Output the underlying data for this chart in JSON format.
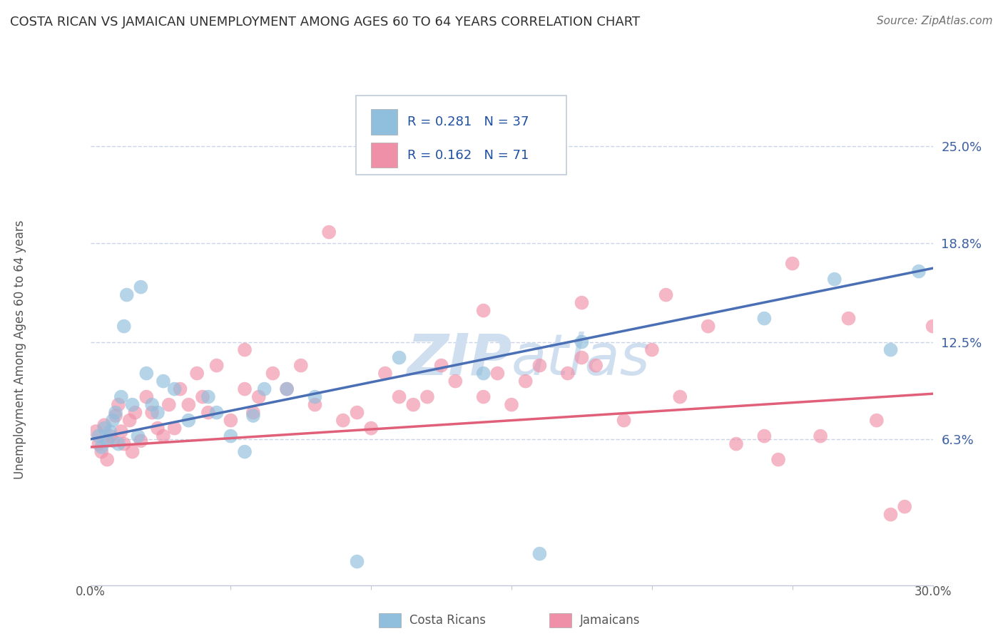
{
  "title": "COSTA RICAN VS JAMAICAN UNEMPLOYMENT AMONG AGES 60 TO 64 YEARS CORRELATION CHART",
  "source": "Source: ZipAtlas.com",
  "ylabel": "Unemployment Among Ages 60 to 64 years",
  "xlim": [
    0.0,
    30.0
  ],
  "ylim": [
    -3.0,
    27.0
  ],
  "ytick_labels": [
    "6.3%",
    "12.5%",
    "18.8%",
    "25.0%"
  ],
  "ytick_values": [
    6.3,
    12.5,
    18.8,
    25.0
  ],
  "legend_entries": [
    {
      "label": "Costa Ricans",
      "R": "R = 0.281",
      "N": "N = 37",
      "color": "#a8c8e8"
    },
    {
      "label": "Jamaicans",
      "R": "R = 0.162",
      "N": "N = 71",
      "color": "#f4a0b8"
    }
  ],
  "costa_rican_color": "#90bedd",
  "jamaican_color": "#f090a8",
  "blue_line_color": "#4a6fb5",
  "pink_line_color": "#e0607a",
  "watermark_color": "#d0dff0",
  "background_color": "#ffffff",
  "grid_color": "#c8d4e8",
  "title_color": "#303030",
  "axis_label_color": "#555555",
  "right_tick_color": "#3a5fa0",
  "legend_text_color": "#2050a0",
  "costa_rican_scatter_x": [
    0.3,
    0.4,
    0.5,
    0.6,
    0.7,
    0.8,
    0.9,
    1.0,
    1.1,
    1.2,
    1.3,
    1.5,
    1.7,
    1.8,
    2.0,
    2.2,
    2.4,
    2.6,
    3.0,
    3.5,
    4.2,
    4.5,
    5.0,
    5.5,
    5.8,
    6.2,
    7.0,
    8.0,
    9.5,
    11.0,
    14.0,
    16.0,
    17.5,
    24.0,
    26.5,
    28.5,
    29.5
  ],
  "costa_rican_scatter_y": [
    6.5,
    5.8,
    7.0,
    6.2,
    6.8,
    7.5,
    8.0,
    6.0,
    9.0,
    13.5,
    15.5,
    8.5,
    6.5,
    16.0,
    10.5,
    8.5,
    8.0,
    10.0,
    9.5,
    7.5,
    9.0,
    8.0,
    6.5,
    5.5,
    7.8,
    9.5,
    9.5,
    9.0,
    -1.5,
    11.5,
    10.5,
    -1.0,
    12.5,
    14.0,
    16.5,
    12.0,
    17.0
  ],
  "jamaican_scatter_x": [
    0.2,
    0.3,
    0.4,
    0.5,
    0.6,
    0.7,
    0.8,
    0.9,
    1.0,
    1.1,
    1.2,
    1.4,
    1.5,
    1.6,
    1.8,
    2.0,
    2.2,
    2.4,
    2.6,
    2.8,
    3.0,
    3.2,
    3.5,
    3.8,
    4.0,
    4.2,
    4.5,
    5.0,
    5.5,
    5.8,
    6.0,
    6.5,
    7.0,
    7.5,
    8.0,
    9.0,
    9.5,
    10.0,
    10.5,
    11.0,
    11.5,
    12.0,
    12.5,
    13.0,
    14.0,
    14.5,
    15.0,
    15.5,
    16.0,
    17.0,
    17.5,
    18.0,
    19.0,
    20.0,
    21.0,
    22.0,
    23.0,
    24.0,
    25.0,
    26.0,
    27.0,
    28.0,
    29.0,
    30.0,
    8.5,
    14.0,
    17.5,
    20.5,
    24.5,
    28.5,
    5.5
  ],
  "jamaican_scatter_y": [
    6.8,
    6.0,
    5.5,
    7.2,
    5.0,
    6.5,
    6.2,
    7.8,
    8.5,
    6.8,
    6.0,
    7.5,
    5.5,
    8.0,
    6.2,
    9.0,
    8.0,
    7.0,
    6.5,
    8.5,
    7.0,
    9.5,
    8.5,
    10.5,
    9.0,
    8.0,
    11.0,
    7.5,
    9.5,
    8.0,
    9.0,
    10.5,
    9.5,
    11.0,
    8.5,
    7.5,
    8.0,
    7.0,
    10.5,
    9.0,
    8.5,
    9.0,
    11.0,
    10.0,
    9.0,
    10.5,
    8.5,
    10.0,
    11.0,
    10.5,
    11.5,
    11.0,
    7.5,
    12.0,
    9.0,
    13.5,
    6.0,
    6.5,
    17.5,
    6.5,
    14.0,
    7.5,
    2.0,
    13.5,
    19.5,
    14.5,
    15.0,
    15.5,
    5.0,
    1.5,
    12.0
  ],
  "blue_line_y_start": 6.3,
  "blue_line_y_end": 17.2,
  "pink_line_y_start": 5.8,
  "pink_line_y_end": 9.2
}
